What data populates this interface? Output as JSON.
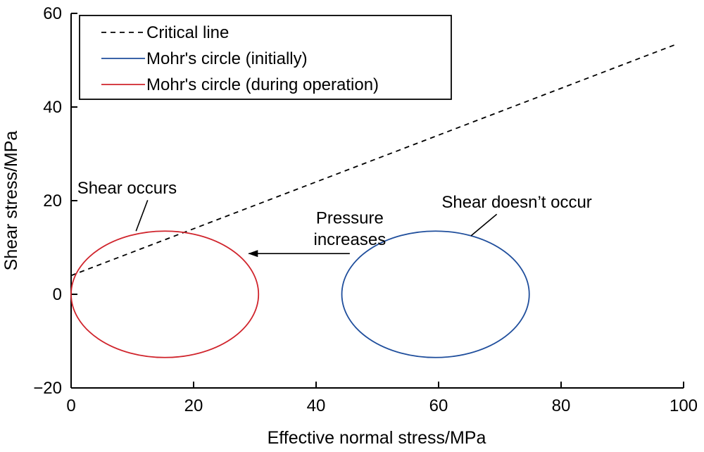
{
  "chart_data": {
    "type": "line",
    "xlabel": "Effective normal stress/MPa",
    "ylabel": "Shear stress/MPa",
    "xlim": [
      0,
      100
    ],
    "ylim": [
      -20,
      60
    ],
    "xticks": [
      0,
      20,
      40,
      60,
      80,
      100
    ],
    "yticks": [
      -20,
      0,
      20,
      40,
      60
    ],
    "xtick_labels": [
      "0",
      "20",
      "40",
      "60",
      "80",
      "100"
    ],
    "ytick_labels": [
      "−20",
      "0",
      "20",
      "40",
      "60"
    ],
    "grid": false,
    "legend_position": "top-left",
    "series": [
      {
        "name": "Critical line",
        "kind": "line",
        "style": "dashed",
        "color": "#000000",
        "x": [
          0,
          99
        ],
        "y": [
          4.0,
          53.5
        ]
      },
      {
        "name": "Mohr's circle (initially)",
        "kind": "circle",
        "style": "solid",
        "color": "#1f4e9c",
        "center": [
          59.5,
          0
        ],
        "radius_x": 15.3,
        "radius_y": 13.5
      },
      {
        "name": "Mohr's circle (during operation)",
        "kind": "circle",
        "style": "solid",
        "color": "#d0242c",
        "center": [
          15.3,
          0
        ],
        "radius_x": 15.3,
        "radius_y": 13.5
      }
    ],
    "annotations": [
      {
        "text": "Shear occurs",
        "text_x": 1,
        "text_y": 21.5,
        "anchor": "start",
        "leader": {
          "x1": 12.5,
          "y1": 20.1,
          "x2": 10.6,
          "y2": 13.5,
          "arrow": false
        }
      },
      {
        "text": "Shear doesn’t occur",
        "text_x": 60.5,
        "text_y": 18.5,
        "anchor": "start",
        "leader": {
          "x1": 69.5,
          "y1": 17.1,
          "x2": 65.3,
          "y2": 12.5,
          "arrow": false
        }
      },
      {
        "lines": [
          "Pressure",
          "increases"
        ],
        "text_x": 45.5,
        "text_y": 15.1,
        "line_spacing": 4.6,
        "anchor": "middle",
        "leader": {
          "x1": 45.5,
          "y1": 8.7,
          "x2": 29.0,
          "y2": 8.7,
          "arrow": true
        }
      }
    ]
  }
}
